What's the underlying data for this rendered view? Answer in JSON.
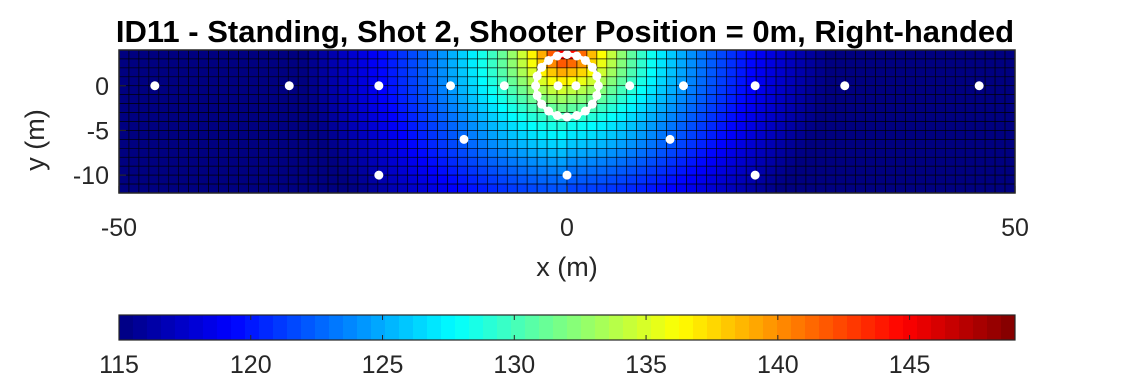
{
  "chart_data": {
    "type": "heatmap",
    "title": "ID11 - Standing, Shot 2, Shooter Position = 0m, Right-handed",
    "xlabel": "x (m)",
    "ylabel": "y (m)",
    "xlim": [
      -50,
      50
    ],
    "ylim": [
      -12,
      4
    ],
    "x_ticks": [
      -50,
      0,
      50
    ],
    "x_tick_labels": [
      "-50",
      "0",
      "50"
    ],
    "y_ticks": [
      0,
      -5,
      -10
    ],
    "y_tick_labels": [
      "0",
      "-5",
      "-10"
    ],
    "grid": "cell edges drawn in black",
    "colormap": "jet",
    "colorbar": {
      "placement": "bottom",
      "range": [
        115,
        149
      ],
      "ticks": [
        115,
        120,
        125,
        130,
        135,
        140,
        145
      ],
      "tick_labels": [
        "115",
        "120",
        "125",
        "130",
        "135",
        "140",
        "145"
      ]
    },
    "field": {
      "description": "peak level across grid, max near shooter at top center",
      "peak_value": 149,
      "min_value": 115,
      "peak_location": [
        0,
        4
      ]
    },
    "sensor_points": [
      {
        "x": -46,
        "y": 0
      },
      {
        "x": -31,
        "y": 0
      },
      {
        "x": -21,
        "y": 0
      },
      {
        "x": -13,
        "y": 0
      },
      {
        "x": -7,
        "y": 0
      },
      {
        "x": -1,
        "y": 0
      },
      {
        "x": 1,
        "y": 0
      },
      {
        "x": 7,
        "y": 0
      },
      {
        "x": 13,
        "y": 0
      },
      {
        "x": 21,
        "y": 0
      },
      {
        "x": 31,
        "y": 0
      },
      {
        "x": 46,
        "y": 0
      },
      {
        "x": -11.5,
        "y": -6
      },
      {
        "x": 11.5,
        "y": -6
      },
      {
        "x": -21,
        "y": -10
      },
      {
        "x": 0,
        "y": -10
      },
      {
        "x": 21,
        "y": -10
      }
    ],
    "shooter_circle": {
      "center": [
        0,
        0
      ],
      "radius_m": 3.5
    },
    "shooter_ring_markers": 20
  }
}
